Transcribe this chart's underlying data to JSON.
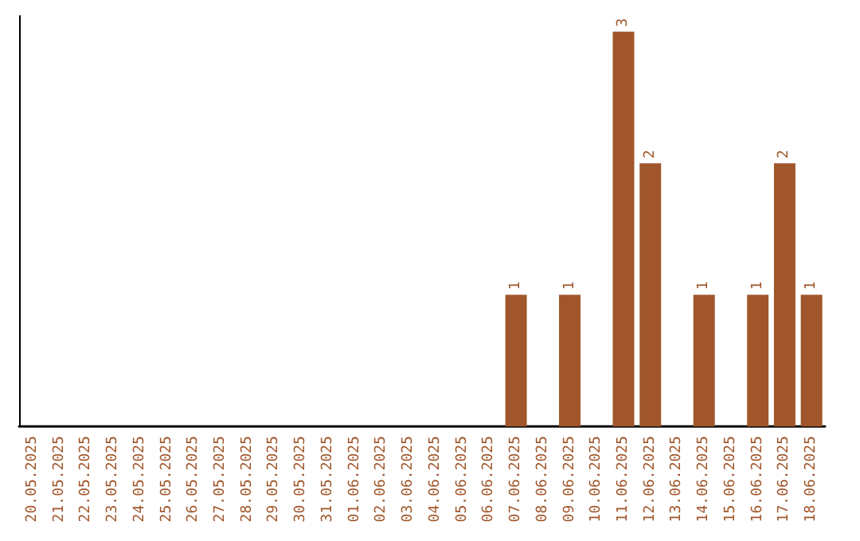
{
  "chart_data": {
    "type": "bar",
    "categories": [
      "20.05.2025",
      "21.05.2025",
      "22.05.2025",
      "23.05.2025",
      "24.05.2025",
      "25.05.2025",
      "26.05.2025",
      "27.05.2025",
      "28.05.2025",
      "29.05.2025",
      "30.05.2025",
      "31.05.2025",
      "01.06.2025",
      "02.06.2025",
      "03.06.2025",
      "04.06.2025",
      "05.06.2025",
      "06.06.2025",
      "07.06.2025",
      "08.06.2025",
      "09.06.2025",
      "10.06.2025",
      "11.06.2025",
      "12.06.2025",
      "13.06.2025",
      "14.06.2025",
      "15.06.2025",
      "16.06.2025",
      "17.06.2025",
      "18.06.2025"
    ],
    "values": [
      null,
      null,
      null,
      null,
      null,
      null,
      null,
      null,
      null,
      null,
      null,
      null,
      null,
      null,
      null,
      null,
      null,
      null,
      1,
      null,
      1,
      null,
      3,
      2,
      null,
      1,
      null,
      1,
      2,
      1
    ],
    "data_labels": true,
    "color": "#a0562a",
    "tick_labels": "x",
    "grid": false
  }
}
